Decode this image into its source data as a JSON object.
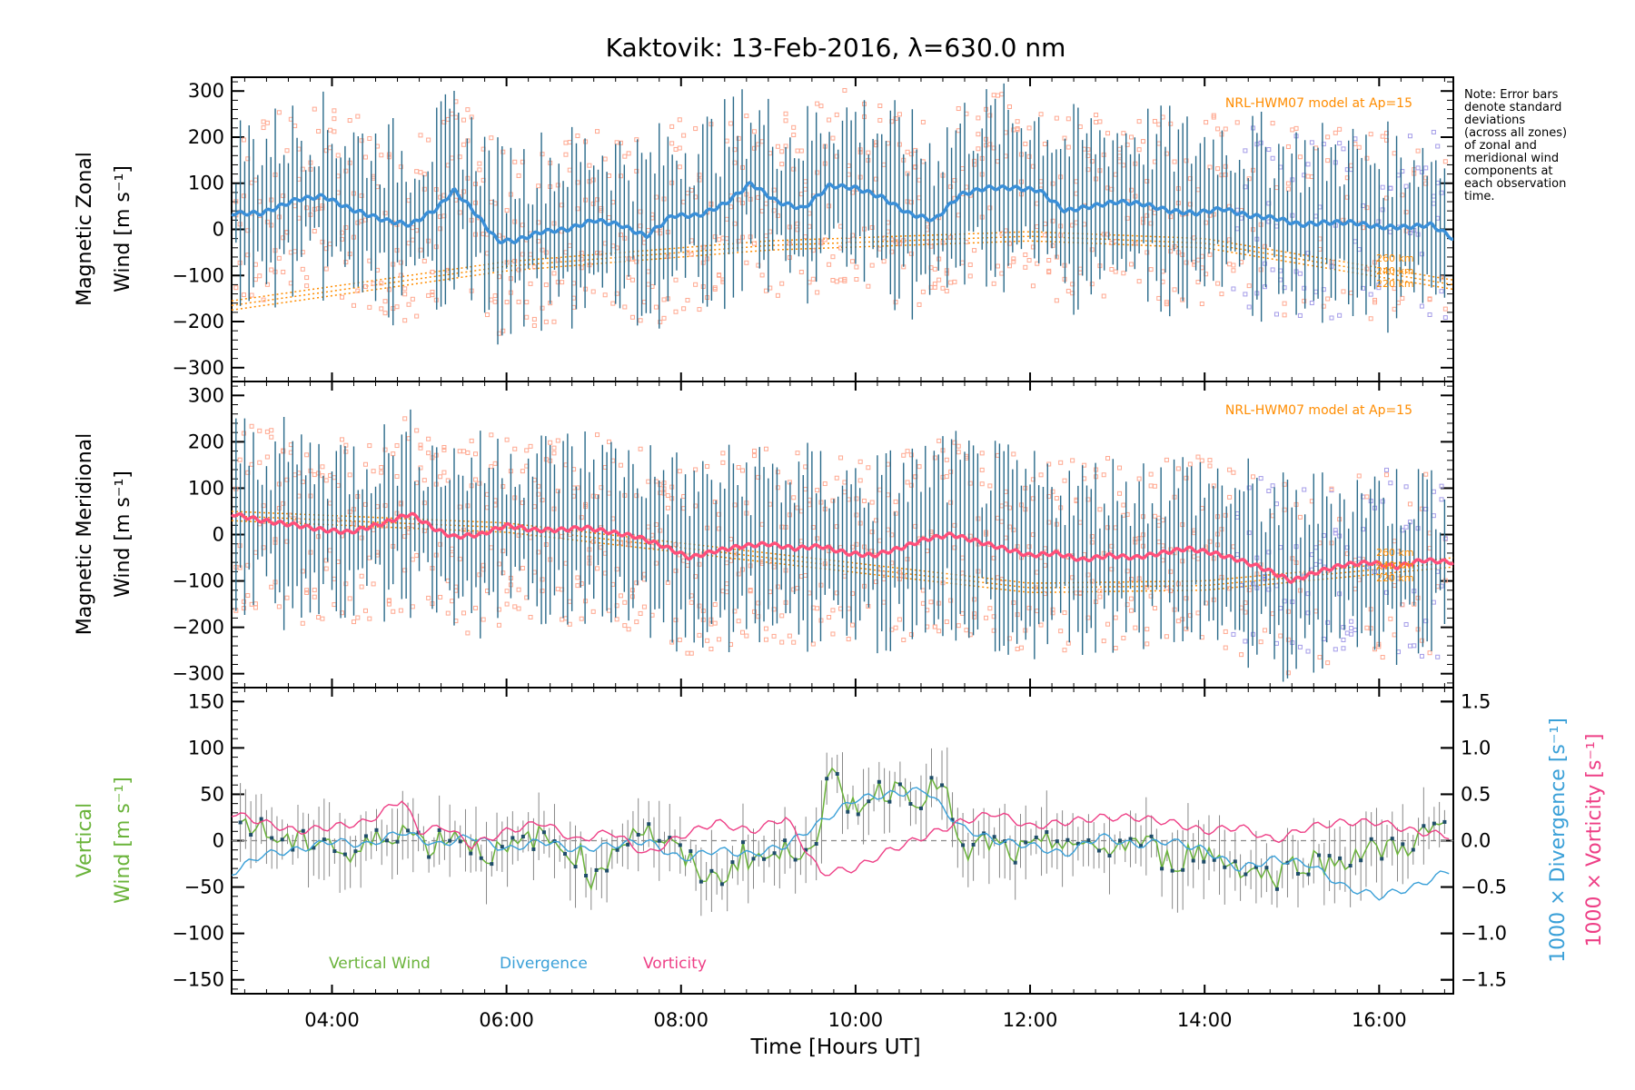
{
  "chart_data": [
    {
      "type": "line",
      "title": "Kaktovik: 13-Feb-2016, λ=630.0 nm",
      "ylabel_line1": "Magnetic Zonal",
      "ylabel_line2": "Wind [m s⁻¹]",
      "ylim": [
        -330,
        330
      ],
      "yticks": [
        -300,
        -200,
        -100,
        0,
        100,
        200,
        300
      ],
      "xlim_hours": [
        2.85,
        16.85
      ],
      "annotation": "NRL-HWM07 model at Ap=15",
      "altitude_labels": [
        "260 km",
        "240 km",
        "220 km"
      ],
      "note": [
        "Note: Error bars",
        "denote standard",
        "deviations",
        "(across all zones)",
        "of zonal and",
        "meridional wind",
        "components at",
        "each observation",
        "time."
      ],
      "series": [
        {
          "color": "#3a8fd8",
          "x": [
            2.85,
            3.2,
            3.6,
            3.9,
            4.2,
            4.6,
            4.9,
            5.2,
            5.4,
            5.6,
            5.9,
            6.1,
            6.4,
            6.7,
            7.0,
            7.3,
            7.6,
            7.9,
            8.2,
            8.5,
            8.8,
            9.1,
            9.4,
            9.7,
            10.0,
            10.3,
            10.6,
            10.9,
            11.2,
            11.5,
            11.8,
            12.1,
            12.4,
            12.7,
            13.0,
            13.3,
            13.6,
            13.9,
            14.2,
            14.5,
            14.8,
            15.1,
            15.4,
            15.7,
            16.0,
            16.3,
            16.6,
            16.85
          ],
          "y": [
            35,
            35,
            65,
            72,
            45,
            20,
            10,
            45,
            85,
            45,
            -25,
            -25,
            -5,
            0,
            20,
            10,
            -15,
            30,
            30,
            55,
            100,
            60,
            45,
            95,
            90,
            70,
            35,
            20,
            75,
            90,
            90,
            85,
            40,
            50,
            60,
            55,
            40,
            35,
            45,
            30,
            25,
            10,
            15,
            15,
            5,
            5,
            10,
            -20
          ]
        }
      ]
    },
    {
      "type": "line",
      "ylabel_line1": "Magnetic Meridional",
      "ylabel_line2": "Wind [m s⁻¹]",
      "ylim": [
        -330,
        330
      ],
      "yticks": [
        -300,
        -200,
        -100,
        0,
        100,
        200,
        300
      ],
      "xlim_hours": [
        2.85,
        16.85
      ],
      "annotation": "NRL-HWM07 model at Ap=15",
      "altitude_labels": [
        "260 km",
        "240 km",
        "220 km"
      ],
      "series": [
        {
          "color": "#ff4f7a",
          "x": [
            2.85,
            3.2,
            3.6,
            3.9,
            4.2,
            4.6,
            4.9,
            5.2,
            5.4,
            5.7,
            6.0,
            6.3,
            6.6,
            6.9,
            7.2,
            7.5,
            7.8,
            8.1,
            8.4,
            8.7,
            9.0,
            9.3,
            9.6,
            9.9,
            10.2,
            10.5,
            10.8,
            11.1,
            11.4,
            11.7,
            12.0,
            12.3,
            12.6,
            12.9,
            13.2,
            13.5,
            13.8,
            14.1,
            14.4,
            14.7,
            15.0,
            15.3,
            15.6,
            15.9,
            16.2,
            16.5,
            16.85
          ],
          "y": [
            45,
            30,
            20,
            10,
            5,
            25,
            45,
            10,
            -5,
            0,
            20,
            10,
            10,
            15,
            5,
            -5,
            -25,
            -50,
            -35,
            -25,
            -20,
            -30,
            -25,
            -40,
            -45,
            -30,
            -10,
            0,
            -15,
            -30,
            -45,
            -40,
            -55,
            -45,
            -50,
            -40,
            -30,
            -40,
            -55,
            -75,
            -100,
            -80,
            -65,
            -60,
            -70,
            -55,
            -60
          ]
        }
      ]
    },
    {
      "type": "line",
      "ylabel_line1": "Vertical",
      "ylabel_line2": "Wind [m s⁻¹]",
      "ylim": [
        -165,
        165
      ],
      "yticks": [
        -150,
        -100,
        -50,
        0,
        50,
        100,
        150
      ],
      "y2ticks": [
        -1.5,
        -1.0,
        -0.5,
        0.0,
        0.5,
        1.0,
        1.5
      ],
      "y2label_a": "1000 × Divergence [s⁻¹]",
      "y2label_b": "1000 × Vorticity [s⁻¹]",
      "xlim_hours": [
        2.85,
        16.85
      ],
      "xticks": [
        "04:00",
        "06:00",
        "08:00",
        "10:00",
        "12:00",
        "14:00",
        "16:00"
      ],
      "xlabel": "Time [Hours UT]",
      "series": [
        {
          "name": "Vertical Wind",
          "color": "#6ab33a",
          "x": [
            3.0,
            3.3,
            3.6,
            3.9,
            4.2,
            4.5,
            4.8,
            5.1,
            5.4,
            5.7,
            6.0,
            6.3,
            6.6,
            6.9,
            7.0,
            7.2,
            7.5,
            7.8,
            8.1,
            8.4,
            8.7,
            9.0,
            9.3,
            9.6,
            9.7,
            9.9,
            10.2,
            10.5,
            10.8,
            11.0,
            11.2,
            11.5,
            11.8,
            12.1,
            12.4,
            12.7,
            13.0,
            13.3,
            13.6,
            13.9,
            14.2,
            14.5,
            14.8,
            15.1,
            15.4,
            15.7,
            16.0,
            16.3,
            16.6,
            16.85
          ],
          "y": [
            20,
            5,
            -5,
            5,
            -20,
            0,
            15,
            -5,
            10,
            -10,
            -15,
            5,
            -5,
            -20,
            -50,
            -10,
            15,
            0,
            -25,
            -45,
            -15,
            -20,
            -10,
            10,
            75,
            35,
            50,
            60,
            45,
            70,
            -20,
            0,
            -15,
            -10,
            5,
            -15,
            -5,
            0,
            -25,
            -10,
            -20,
            -30,
            -40,
            -20,
            -25,
            -15,
            -10,
            -5,
            10,
            25
          ]
        },
        {
          "name": "Divergence",
          "color": "#3aa0d8",
          "axis": "right",
          "x": [
            2.85,
            3.2,
            3.6,
            4.0,
            4.4,
            4.8,
            5.2,
            5.6,
            6.0,
            6.4,
            6.8,
            7.2,
            7.6,
            8.0,
            8.4,
            8.8,
            9.2,
            9.6,
            10.0,
            10.4,
            10.8,
            11.2,
            11.6,
            12.0,
            12.4,
            12.8,
            13.2,
            13.6,
            14.0,
            14.4,
            14.8,
            15.2,
            15.6,
            16.0,
            16.4,
            16.85
          ],
          "y": [
            -0.35,
            -0.15,
            -0.1,
            0.0,
            -0.05,
            0.1,
            -0.05,
            0.05,
            -0.1,
            0.0,
            -0.1,
            -0.05,
            0.0,
            -0.2,
            -0.1,
            -0.15,
            -0.05,
            0.2,
            0.45,
            0.5,
            0.55,
            0.15,
            0.0,
            -0.05,
            -0.15,
            0.05,
            -0.05,
            0.0,
            -0.1,
            -0.3,
            -0.2,
            -0.25,
            -0.5,
            -0.6,
            -0.5,
            -0.3
          ]
        },
        {
          "name": "Vorticity",
          "color": "#ee3f86",
          "axis": "right",
          "x": [
            2.85,
            3.2,
            3.6,
            4.0,
            4.4,
            4.8,
            5.0,
            5.3,
            5.6,
            6.0,
            6.4,
            6.8,
            7.2,
            7.6,
            8.0,
            8.4,
            8.8,
            9.2,
            9.6,
            10.0,
            10.4,
            10.8,
            11.2,
            11.6,
            12.0,
            12.4,
            12.8,
            13.2,
            13.6,
            14.0,
            14.4,
            14.8,
            15.2,
            15.6,
            16.0,
            16.4,
            16.85
          ],
          "y": [
            0.3,
            0.2,
            0.1,
            0.15,
            0.2,
            0.45,
            0.1,
            0.15,
            -0.05,
            0.1,
            0.2,
            0.0,
            0.1,
            -0.15,
            0.05,
            0.2,
            0.1,
            0.25,
            -0.35,
            -0.3,
            -0.1,
            0.05,
            0.2,
            0.3,
            0.15,
            0.2,
            0.25,
            0.25,
            0.2,
            0.1,
            0.15,
            0.0,
            0.15,
            0.2,
            0.2,
            0.1,
            0.05
          ]
        }
      ]
    }
  ]
}
